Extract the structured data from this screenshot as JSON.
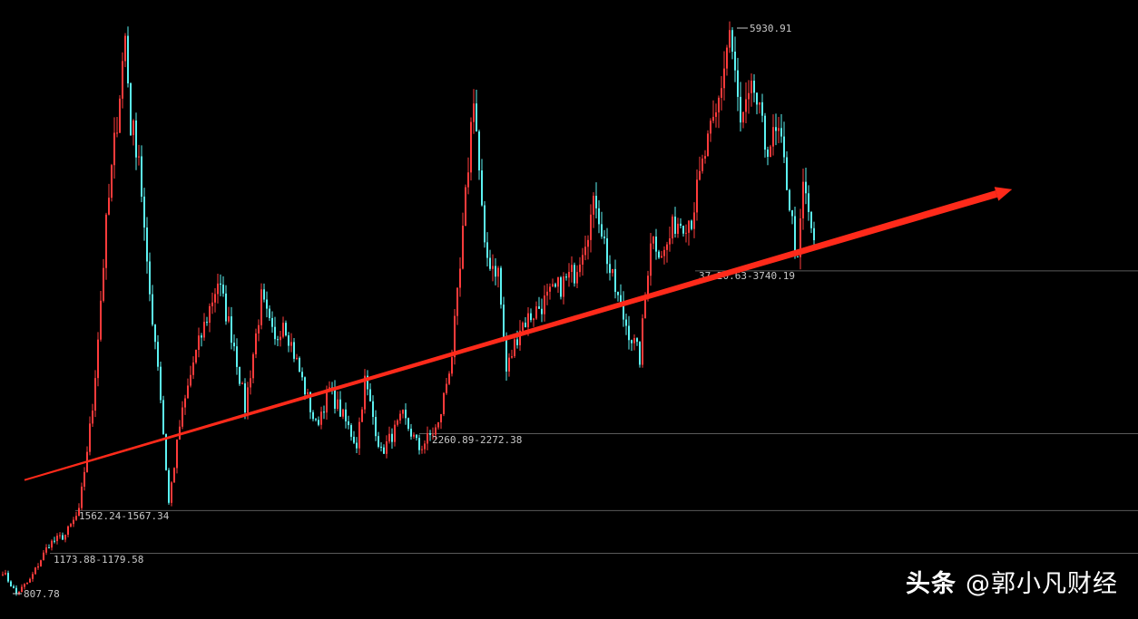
{
  "chart_data": {
    "type": "candlestick",
    "title": "",
    "colors": {
      "up": "#ff3b3b",
      "down": "#5cf2f2",
      "background": "#000000",
      "trend_arrow": "#ff2a1a",
      "level_line": "#5a5a5a"
    },
    "ylim": [
      700,
      6000
    ],
    "key_points": {
      "x": [
        0,
        5,
        10,
        17,
        23,
        28,
        33,
        38,
        43,
        45,
        47,
        50,
        53,
        57,
        61,
        65,
        70,
        79,
        85,
        89,
        95,
        100,
        103,
        110,
        115,
        120,
        130,
        133,
        139,
        147,
        153,
        160,
        165,
        168,
        173,
        177,
        182,
        185,
        190,
        200,
        210,
        218,
        223,
        228,
        234,
        238,
        243,
        247,
        253,
        258,
        262,
        267,
        271,
        276,
        280,
        285,
        288,
        292,
        294,
        298
      ],
      "price": [
        1013,
        807,
        931,
        1260,
        1342,
        1548,
        2496,
        4143,
        5379,
        5873,
        5067,
        4820,
        3731,
        2907,
        1630,
        2331,
        2907,
        3649,
        3072,
        2496,
        3484,
        3072,
        3319,
        2743,
        2331,
        2660,
        2166,
        2743,
        2084,
        2413,
        2125,
        2331,
        2990,
        3731,
        5379,
        3896,
        3731,
        2825,
        3237,
        3484,
        3731,
        4390,
        3731,
        3319,
        2949,
        4060,
        3896,
        4184,
        4225,
        4802,
        5131,
        5930,
        5049,
        5379,
        4884,
        4967,
        4555,
        3772,
        4513,
        4019
      ]
    },
    "levels": [
      {
        "label": "5930.91",
        "price": 5930.91
      },
      {
        "label": "37·20.63-3740.19",
        "price": 3740.19
      },
      {
        "label": "2260.89-2272.38",
        "price": 2260.89
      },
      {
        "label": "1562.24-1567.34",
        "price": 1562.24
      },
      {
        "label": "1173.88-1179.58",
        "price": 1173.88
      },
      {
        "label": "807.78",
        "price": 807.78
      }
    ],
    "trend_arrow": {
      "from": {
        "x": 8,
        "price": 1840
      },
      "to": {
        "x": 370,
        "price": 4440
      }
    }
  },
  "watermark": {
    "platform": "头条",
    "author": "@郭小凡财经"
  }
}
